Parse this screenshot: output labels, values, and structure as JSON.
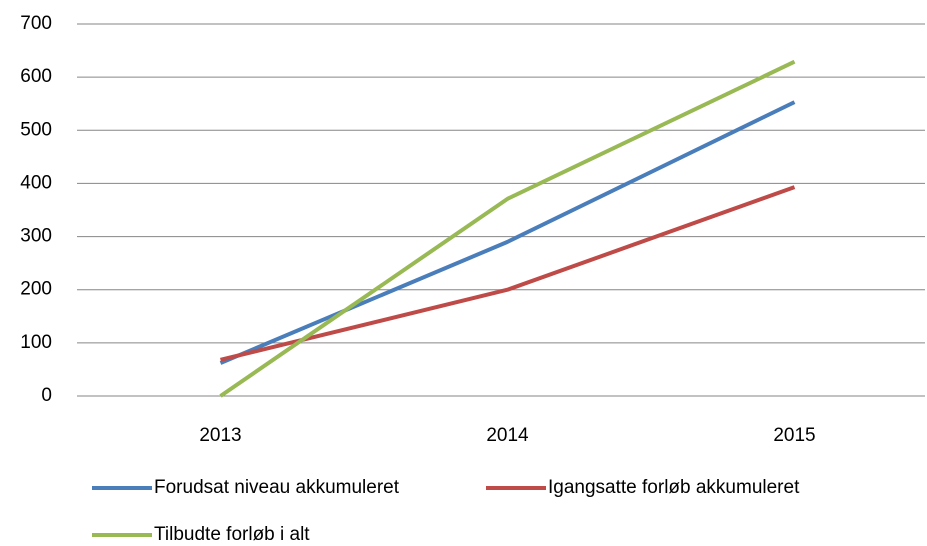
{
  "chart_data": {
    "type": "line",
    "categories": [
      "2013",
      "2014",
      "2015"
    ],
    "series": [
      {
        "name": "Forudsat niveau akkumuleret",
        "color": "#4a7ebb",
        "values": [
          62,
          290,
          553
        ]
      },
      {
        "name": "Igangsatte forløb akkumuleret",
        "color": "#be4b48",
        "values": [
          68,
          200,
          393
        ]
      },
      {
        "name": "Tilbudte forløb i alt",
        "color": "#98b954",
        "values": [
          0,
          371,
          629
        ]
      }
    ],
    "ylim": [
      0,
      700
    ],
    "yticks": [
      0,
      100,
      200,
      300,
      400,
      500,
      600,
      700
    ],
    "grid": true,
    "legend": "bottom"
  }
}
